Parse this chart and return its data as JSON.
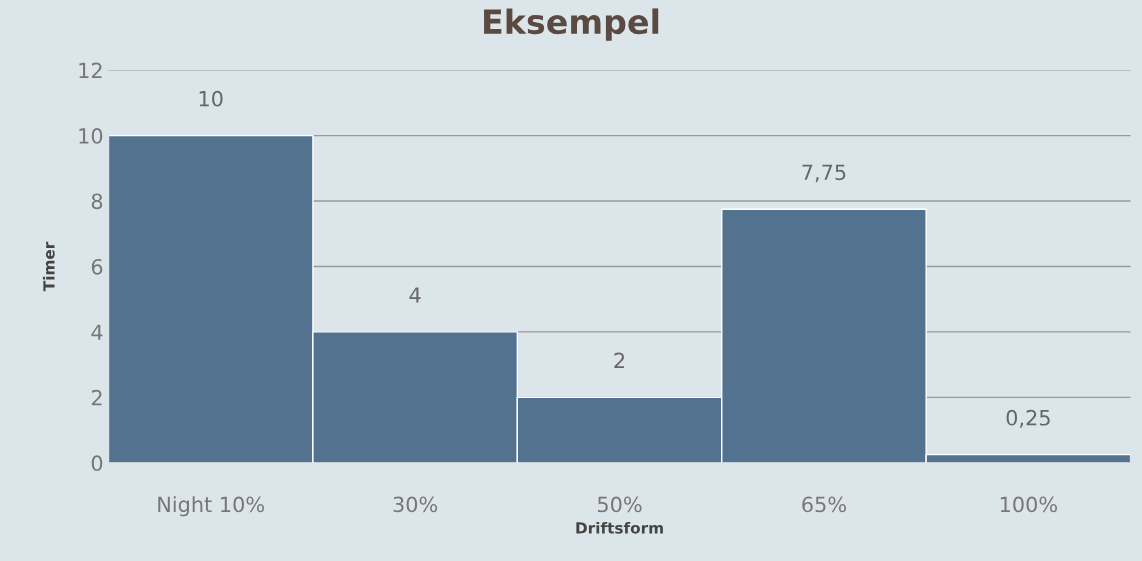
{
  "chart_data": {
    "type": "bar",
    "title": "Eksempel",
    "xlabel": "Driftsform",
    "ylabel": "Timer",
    "categories": [
      "Night 10%",
      "30%",
      "50%",
      "65%",
      "100%"
    ],
    "values": [
      10,
      4,
      2,
      7.75,
      0.25
    ],
    "value_labels": [
      "10",
      "4",
      "2",
      "7,75",
      "0,25"
    ],
    "color": "#52728f",
    "ylim": [
      0,
      12
    ],
    "yticks": [
      0,
      2,
      4,
      6,
      8,
      10,
      12
    ],
    "grid": "y",
    "legend": false
  }
}
